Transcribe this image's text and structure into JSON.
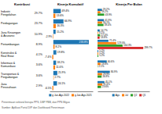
{
  "chart_data": [
    {
      "type": "table",
      "title": "Kontribusi",
      "categories": [
        "Industri\nPengolahan",
        "Perdagangan",
        "Jasa Keuangan\n& Asuransi",
        "Pertambangan",
        "Konstruksi &\nReal Estat",
        "Informasi &\nKomunikasi",
        "Transportasi &\nPergudangan",
        "Jasa\nPerusahaan"
      ],
      "values": [
        29.7,
        23.7,
        10.9,
        8.9,
        4.1,
        3.6,
        3.6,
        2.9
      ],
      "value_labels": [
        "29.7%",
        "23.7%",
        "10.9%",
        "8.9%",
        "4.1%",
        "3.6%",
        "3.6%",
        "2.9%"
      ],
      "annotations": [
        "Penerimaan sektoral berupa PPS, DBP PBB, dan PPN Migas",
        "Sumber: Aplikasi Portal DIP dan Dashboard Penerimaan"
      ]
    },
    {
      "type": "bar",
      "orientation": "horizontal",
      "title": "Kinerja Kumulatif",
      "series": [
        {
          "name": "g Jan-Ags 2022",
          "values": [
            49.4,
            66.9,
            15.2,
            233.8,
            19.8,
            18.2,
            25.9,
            24.1
          ],
          "value_labels": [
            "49.4%",
            "66.9%",
            "15.2%",
            "233.8%",
            "19.8%",
            "18.2%",
            "25.9%",
            "24.1%"
          ]
        },
        {
          "name": "g Jan-Ags 2021",
          "values": [
            13.6,
            16.3,
            -2.9,
            8.2,
            -7.4,
            11.6,
            2.7,
            -6.5
          ],
          "value_labels": [
            "13.6%",
            "16.3%",
            "-2.9%",
            "8.2%",
            "-7.4%",
            "11.6%",
            "2.7%",
            "-6.5%"
          ]
        }
      ],
      "xlim": [
        -25,
        260
      ],
      "data_labels": true,
      "legend": "bottom"
    },
    {
      "type": "bar",
      "orientation": "horizontal",
      "title": "Kinerja Per Bulan",
      "series": [
        {
          "name": "Ags",
          "values": [
            29.2,
            41.9,
            14.7,
            71.4,
            5.2,
            60.6,
            80.9,
            45.1
          ],
          "value_labels": [
            "29.2%",
            "41.9%",
            "14.7%",
            "71.4%",
            "5.2%",
            "60.6%",
            "80.9%",
            "45.1%"
          ]
        },
        {
          "name": "Jul",
          "values": [
            19.2,
            30.1,
            4.1,
            123.0,
            5.2,
            19.8,
            29.9,
            31.6
          ],
          "value_labels": [
            "19.2%",
            "30.1%",
            "4.1%",
            "123.0%",
            "5.2%",
            "19.8%",
            "29.9%",
            "31.6%"
          ]
        },
        {
          "name": "Q2",
          "values": [
            43.9,
            39.4,
            17.4,
            164.3,
            5.2,
            2.1,
            26.8,
            23.6
          ],
          "value_labels": [
            "43.9%",
            "39.4%",
            "17.4%",
            "164.3%",
            "5.2%",
            "2.1%",
            "26.8%",
            "23.6%"
          ]
        },
        {
          "name": "Q1",
          "values": [
            0.0,
            0.0,
            13.8,
            299.7,
            0.0,
            0.0,
            0.0,
            0.0
          ],
          "value_labels": [
            null,
            null,
            "13.8%",
            "299.7%",
            null,
            null,
            null,
            null
          ]
        }
      ],
      "xlim": [
        0,
        340
      ],
      "data_labels": true,
      "legend": "bottom"
    }
  ]
}
